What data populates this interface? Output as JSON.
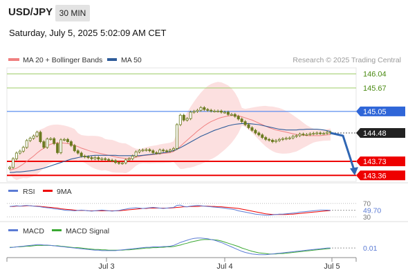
{
  "header": {
    "pair": "USD/JPY",
    "timeframe": "30 MIN",
    "datetime": "Saturday, July 5, 2025 5:02:09 AM CET"
  },
  "legend": {
    "bollinger": "MA 20 + Bollinger Bands",
    "ma50": "MA 50",
    "credit": "Research © 2025 Trading Central"
  },
  "colors": {
    "candle": "#6b7a1f",
    "price_line": "#333333",
    "ma20": "#f08080",
    "bollinger_fill": "#fbd6d6",
    "ma50": "#2f5c9a",
    "target_line": "#9ccc65",
    "pivot_line": "#5b8def",
    "support_line": "#ee0000",
    "arrow": "#2f66b3",
    "rsi": "#5b7bd4",
    "rsi_ma": "#ee0000",
    "macd": "#5b7bd4",
    "macd_signal": "#3aa832"
  },
  "chart_data": [
    {
      "type": "candlestick",
      "title": "USD/JPY",
      "timeframe": "30 MIN",
      "x_ticks": [
        "Jul 3",
        "Jul 4",
        "Jul 5"
      ],
      "ylim": [
        143.2,
        146.2
      ],
      "levels": [
        {
          "value": 146.04,
          "label": "146.04",
          "style": "green"
        },
        {
          "value": 145.67,
          "label": "145.67",
          "style": "green"
        },
        {
          "value": 145.05,
          "label": "145.05",
          "style": "blue"
        },
        {
          "value": 144.48,
          "label": "144.48",
          "style": "last"
        },
        {
          "value": 143.73,
          "label": "143.73",
          "style": "red"
        },
        {
          "value": 143.36,
          "label": "143.36",
          "style": "red"
        }
      ],
      "series": [
        {
          "name": "MA 20 + Bollinger Bands",
          "type": "line_with_band"
        },
        {
          "name": "MA 50",
          "type": "line"
        }
      ],
      "close": [
        143.57,
        143.8,
        143.95,
        144.0,
        144.1,
        144.28,
        144.34,
        144.4,
        144.5,
        144.25,
        144.1,
        144.32,
        144.33,
        144.2,
        143.96,
        144.3,
        144.31,
        144.25,
        144.15,
        144.01,
        143.95,
        143.87,
        143.85,
        143.83,
        143.8,
        143.83,
        143.79,
        143.8,
        143.78,
        143.76,
        143.75,
        143.7,
        143.68,
        143.69,
        143.77,
        143.8,
        143.87,
        143.98,
        144.02,
        144.03,
        144.04,
        144.01,
        143.96,
        143.95,
        144.03,
        144.01,
        144.0,
        144.03,
        144.07,
        144.7,
        144.95,
        144.82,
        144.86,
        145.03,
        145.05,
        145.08,
        145.15,
        145.1,
        145.08,
        145.06,
        145.06,
        145.06,
        145.03,
        145.03,
        144.97,
        144.97,
        144.92,
        144.85,
        144.78,
        144.7,
        144.62,
        144.55,
        144.48,
        144.43,
        144.36,
        144.31,
        144.29,
        144.25,
        144.28,
        144.31,
        144.33,
        144.34,
        144.35,
        144.39,
        144.41,
        144.45,
        144.44,
        144.44,
        144.46,
        144.47,
        144.48,
        144.47,
        144.47,
        144.5,
        144.48
      ],
      "ma20": [
        143.5,
        143.52,
        143.55,
        143.6,
        143.66,
        143.73,
        143.8,
        143.87,
        143.95,
        144.02,
        144.08,
        144.14,
        144.18,
        144.21,
        144.22,
        144.22,
        144.21,
        144.2,
        144.18,
        144.15,
        144.12,
        144.08,
        144.05,
        144.02,
        143.99,
        143.97,
        143.95,
        143.93,
        143.91,
        143.89,
        143.87,
        143.85,
        143.83,
        143.82,
        143.81,
        143.81,
        143.82,
        143.84,
        143.86,
        143.88,
        143.89,
        143.9,
        143.91,
        143.92,
        143.93,
        143.94,
        143.95,
        143.96,
        143.99,
        144.05,
        144.13,
        144.21,
        144.29,
        144.37,
        144.45,
        144.53,
        144.6,
        144.67,
        144.73,
        144.78,
        144.82,
        144.86,
        144.89,
        144.91,
        144.93,
        144.94,
        144.94,
        144.93,
        144.91,
        144.88,
        144.85,
        144.82,
        144.78,
        144.74,
        144.7,
        144.66,
        144.62,
        144.59,
        144.56,
        144.54,
        144.52,
        144.5,
        144.48,
        144.46,
        144.44,
        144.43,
        144.42,
        144.41,
        144.41,
        144.41,
        144.41,
        144.41,
        144.42,
        144.43,
        144.44
      ],
      "ma50": [
        143.44,
        143.44,
        143.45,
        143.45,
        143.46,
        143.47,
        143.48,
        143.49,
        143.51,
        143.53,
        143.55,
        143.58,
        143.61,
        143.64,
        143.67,
        143.7,
        143.73,
        143.76,
        143.79,
        143.81,
        143.83,
        143.85,
        143.86,
        143.87,
        143.88,
        143.89,
        143.89,
        143.89,
        143.89,
        143.89,
        143.89,
        143.89,
        143.88,
        143.88,
        143.88,
        143.88,
        143.88,
        143.88,
        143.88,
        143.89,
        143.9,
        143.91,
        143.92,
        143.93,
        143.94,
        143.96,
        143.97,
        143.99,
        144.01,
        144.05,
        144.09,
        144.14,
        144.19,
        144.24,
        144.29,
        144.34,
        144.39,
        144.43,
        144.47,
        144.51,
        144.55,
        144.58,
        144.61,
        144.64,
        144.67,
        144.69,
        144.71,
        144.72,
        144.73,
        144.73,
        144.73,
        144.72,
        144.71,
        144.7,
        144.68,
        144.66,
        144.64,
        144.62,
        144.6,
        144.58,
        144.57,
        144.56,
        144.56,
        144.56,
        144.56,
        144.57,
        144.57,
        144.58,
        144.58,
        144.58,
        144.58,
        144.57,
        144.56,
        144.54,
        144.52
      ]
    },
    {
      "type": "line",
      "title": "RSI",
      "y_ticks": [
        70,
        30
      ],
      "value_label": "49.70",
      "ylim": [
        20,
        90
      ],
      "series": [
        {
          "name": "RSI",
          "values": [
            61,
            62,
            63,
            62,
            63,
            64,
            63,
            62,
            61,
            60,
            58,
            57,
            56,
            54,
            53,
            52,
            50,
            49,
            49,
            48,
            49,
            50,
            49,
            48,
            47,
            48,
            49,
            50,
            49,
            48,
            47,
            48,
            49,
            51,
            53,
            55,
            56,
            57,
            56,
            55,
            56,
            57,
            58,
            57,
            56,
            55,
            56,
            57,
            58,
            64,
            65,
            61,
            60,
            62,
            63,
            64,
            63,
            62,
            61,
            60,
            59,
            58,
            57,
            56,
            54,
            53,
            51,
            48,
            46,
            44,
            42,
            40,
            38,
            37,
            36,
            35,
            35,
            36,
            37,
            38,
            38,
            39,
            40,
            41,
            42,
            44,
            45,
            46,
            47,
            48,
            49,
            50,
            50,
            50,
            49.7
          ]
        },
        {
          "name": "9MA",
          "values": [
            61,
            61,
            62,
            62,
            62,
            63,
            63,
            62,
            62,
            61,
            60,
            59,
            58,
            57,
            56,
            54,
            53,
            52,
            51,
            50,
            49,
            49,
            49,
            48,
            48,
            48,
            48,
            48,
            48,
            48,
            48,
            48,
            48,
            49,
            50,
            51,
            52,
            53,
            54,
            55,
            55,
            56,
            56,
            56,
            56,
            56,
            56,
            56,
            57,
            58,
            59,
            60,
            60,
            61,
            61,
            61,
            62,
            62,
            62,
            61,
            61,
            60,
            60,
            59,
            58,
            57,
            56,
            55,
            53,
            51,
            49,
            47,
            45,
            43,
            41,
            39,
            38,
            37,
            37,
            37,
            37,
            37,
            38,
            38,
            39,
            40,
            41,
            42,
            43,
            44,
            45,
            46,
            47,
            48,
            49
          ]
        }
      ]
    },
    {
      "type": "line",
      "title": "MACD",
      "value_label": "0.01",
      "ylim": [
        -0.25,
        0.35
      ],
      "series": [
        {
          "name": "MACD",
          "values": [
            0.02,
            0.03,
            0.04,
            0.05,
            0.06,
            0.07,
            0.08,
            0.09,
            0.1,
            0.1,
            0.09,
            0.09,
            0.08,
            0.07,
            0.06,
            0.05,
            0.04,
            0.03,
            0.02,
            0.01,
            0.0,
            -0.01,
            -0.02,
            -0.03,
            -0.04,
            -0.05,
            -0.05,
            -0.06,
            -0.06,
            -0.06,
            -0.06,
            -0.06,
            -0.05,
            -0.04,
            -0.03,
            -0.02,
            -0.01,
            0.0,
            0.01,
            0.02,
            0.03,
            0.03,
            0.04,
            0.04,
            0.04,
            0.05,
            0.05,
            0.06,
            0.08,
            0.12,
            0.16,
            0.19,
            0.22,
            0.25,
            0.27,
            0.28,
            0.28,
            0.27,
            0.26,
            0.24,
            0.22,
            0.19,
            0.16,
            0.12,
            0.08,
            0.04,
            0.0,
            -0.04,
            -0.08,
            -0.11,
            -0.13,
            -0.15,
            -0.16,
            -0.17,
            -0.17,
            -0.17,
            -0.16,
            -0.15,
            -0.14,
            -0.13,
            -0.12,
            -0.11,
            -0.1,
            -0.09,
            -0.08,
            -0.07,
            -0.06,
            -0.05,
            -0.04,
            -0.03,
            -0.02,
            -0.01,
            0.0,
            0.01,
            0.01
          ]
        },
        {
          "name": "MACD Signal",
          "values": [
            0.03,
            0.03,
            0.04,
            0.04,
            0.05,
            0.06,
            0.06,
            0.07,
            0.08,
            0.08,
            0.08,
            0.08,
            0.08,
            0.07,
            0.07,
            0.06,
            0.05,
            0.04,
            0.03,
            0.02,
            0.02,
            0.01,
            0.0,
            -0.01,
            -0.02,
            -0.03,
            -0.03,
            -0.04,
            -0.04,
            -0.05,
            -0.05,
            -0.05,
            -0.05,
            -0.05,
            -0.04,
            -0.04,
            -0.03,
            -0.02,
            -0.01,
            0.0,
            0.01,
            0.01,
            0.02,
            0.02,
            0.03,
            0.03,
            0.04,
            0.04,
            0.05,
            0.07,
            0.09,
            0.12,
            0.14,
            0.17,
            0.19,
            0.21,
            0.23,
            0.24,
            0.24,
            0.24,
            0.23,
            0.22,
            0.2,
            0.17,
            0.14,
            0.11,
            0.08,
            0.05,
            0.01,
            -0.02,
            -0.05,
            -0.08,
            -0.1,
            -0.12,
            -0.13,
            -0.14,
            -0.15,
            -0.15,
            -0.15,
            -0.14,
            -0.14,
            -0.13,
            -0.12,
            -0.11,
            -0.1,
            -0.09,
            -0.08,
            -0.07,
            -0.06,
            -0.05,
            -0.04,
            -0.03,
            -0.02,
            -0.01,
            0.0
          ]
        }
      ]
    }
  ]
}
